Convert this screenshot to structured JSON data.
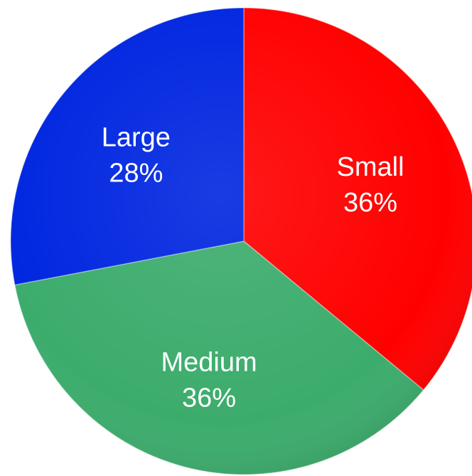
{
  "chart_data": {
    "type": "pie",
    "start_angle_deg": 0,
    "direction": "clockwise",
    "slices": [
      {
        "label": "Small",
        "value": 36,
        "value_label": "36%",
        "color": "#ff0000"
      },
      {
        "label": "Medium",
        "value": 36,
        "value_label": "36%",
        "color": "#3cac6c"
      },
      {
        "label": "Large",
        "value": 28,
        "value_label": "28%",
        "color": "#0026e0"
      }
    ]
  }
}
